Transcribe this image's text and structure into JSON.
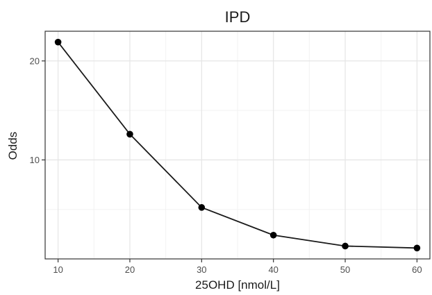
{
  "chart_data": {
    "type": "line",
    "title": "IPD",
    "xlabel": "25OHD [nmol/L]",
    "ylabel": "Odds",
    "x": [
      10,
      20,
      30,
      40,
      50,
      60
    ],
    "series": [
      {
        "values": [
          21.9,
          12.6,
          5.2,
          2.4,
          1.3,
          1.1
        ]
      }
    ],
    "xlim": [
      8.2,
      61.8
    ],
    "ylim": [
      0.0,
      23.0
    ],
    "xticks": [
      10,
      20,
      30,
      40,
      50,
      60
    ],
    "yticks": [
      10,
      20
    ],
    "minor_xgrid": [
      15,
      25,
      35,
      45,
      55
    ],
    "minor_ygrid": [
      5,
      15
    ],
    "grid": true,
    "legend": "none",
    "colors": {
      "line": "#1a1a1a",
      "point": "#000000",
      "major_grid": "#e5e5e5",
      "minor_grid": "#f2f2f2",
      "panel_border": "#333333",
      "text": "#1a1a1a",
      "axis_text": "#4d4d4d"
    }
  }
}
